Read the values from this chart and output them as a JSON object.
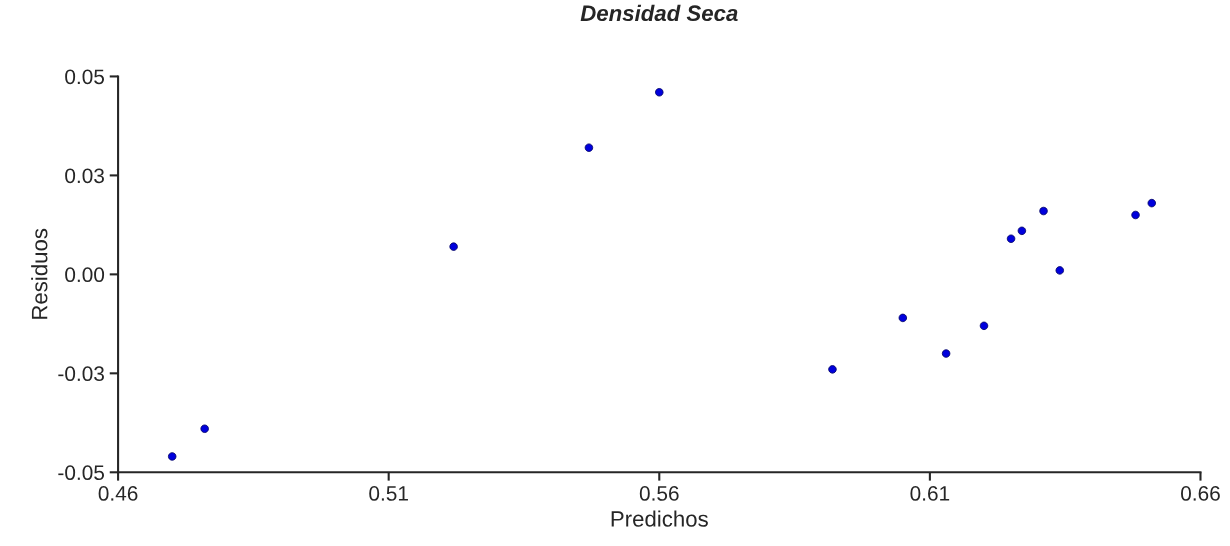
{
  "chart_data": {
    "type": "scatter",
    "title": "Densidad Seca",
    "xlabel": "Predichos",
    "ylabel": "Residuos",
    "x": [
      0.47,
      0.476,
      0.522,
      0.547,
      0.56,
      0.592,
      0.605,
      0.613,
      0.62,
      0.625,
      0.627,
      0.631,
      0.634,
      0.648,
      0.651
    ],
    "series": [
      {
        "color": "#0000dd",
        "values": [
          -0.046,
          -0.039,
          0.007,
          0.032,
          0.046,
          -0.024,
          -0.011,
          -0.02,
          -0.013,
          0.009,
          0.011,
          0.016,
          0.001,
          0.015,
          0.018
        ]
      }
    ],
    "xlim": [
      0.46,
      0.66
    ],
    "xticks": [
      0.46,
      0.51,
      0.56,
      0.61,
      0.66
    ],
    "ylim": [
      -0.05,
      0.05
    ],
    "yticks": [
      {
        "value": -0.05,
        "label": "-0.05"
      },
      {
        "value": -0.025,
        "label": "-0.03"
      },
      {
        "value": 0,
        "label": "0.00"
      },
      {
        "value": 0.025,
        "label": "0.03"
      },
      {
        "value": 0.05,
        "label": "0.05"
      }
    ],
    "grid": false,
    "legend": false,
    "marker": "circle"
  }
}
